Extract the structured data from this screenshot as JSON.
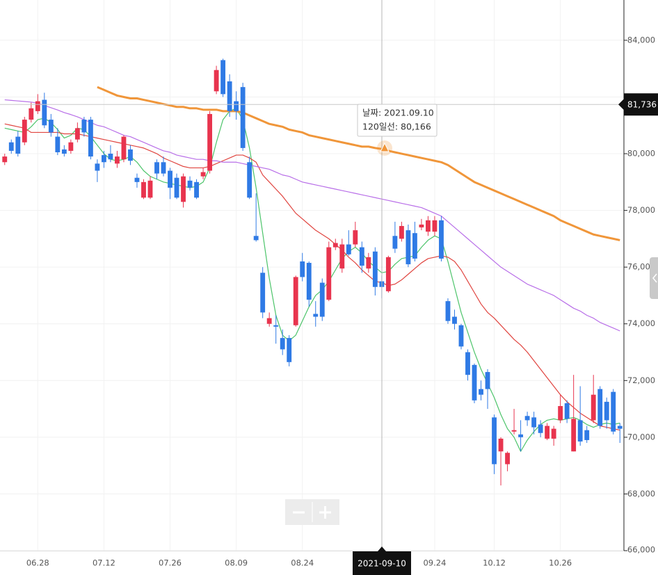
{
  "chart_data": {
    "type": "candlestick",
    "categories": [
      null,
      null,
      null,
      null,
      null,
      "06.28",
      null,
      null,
      null,
      null,
      null,
      null,
      null,
      null,
      null,
      "07.12",
      null,
      null,
      null,
      null,
      null,
      null,
      null,
      null,
      null,
      "07.26",
      null,
      null,
      null,
      null,
      null,
      null,
      null,
      null,
      null,
      "08.09",
      null,
      null,
      null,
      null,
      null,
      null,
      null,
      null,
      null,
      "08.24",
      null,
      null,
      null,
      null,
      null,
      null,
      null,
      null,
      null,
      null,
      null,
      null,
      null,
      null,
      null,
      null,
      null,
      null,
      null,
      "09.24",
      null,
      null,
      null,
      null,
      null,
      null,
      null,
      null,
      "10.12",
      null,
      null,
      null,
      null,
      null,
      null,
      null,
      null,
      null,
      "10.26",
      null,
      null,
      null,
      null,
      null,
      null,
      null,
      null,
      null
    ],
    "open": [
      79700,
      80400,
      80600,
      80400,
      81200,
      81500,
      81900,
      81200,
      80600,
      80150,
      80100,
      80500,
      81200,
      81200,
      79650,
      79950,
      80000,
      79650,
      79800,
      80150,
      79150,
      78450,
      78450,
      79700,
      79700,
      79400,
      79150,
      78300,
      79050,
      79000,
      79200,
      79400,
      82200,
      83300,
      82550,
      81850,
      82350,
      79700,
      77100,
      75800,
      74000,
      73950,
      73500,
      73500,
      73950,
      76200,
      76150,
      74350,
      75450,
      74850,
      76700,
      75950,
      76800,
      76800,
      76700,
      75950,
      76550,
      75500,
      75150,
      77100,
      77000,
      77300,
      77200,
      77400,
      77250,
      77250,
      77650,
      74800,
      74250,
      73950,
      73000,
      72550,
      71700,
      72300,
      70700,
      69500,
      69050,
      70200,
      70100,
      70750,
      70700,
      70450,
      69950,
      69950,
      70600,
      71200,
      69500,
      70600,
      70250,
      70600,
      71700,
      71250,
      71600,
      70400
    ],
    "high": [
      80000,
      80500,
      80800,
      81300,
      81800,
      82100,
      82150,
      81400,
      80900,
      80300,
      80500,
      81100,
      81300,
      81300,
      79800,
      80100,
      80300,
      80100,
      80650,
      80300,
      79300,
      79100,
      79200,
      79800,
      79900,
      79500,
      79300,
      79300,
      79200,
      79100,
      79500,
      81500,
      83100,
      83350,
      82800,
      82200,
      82500,
      79900,
      78600,
      76000,
      74400,
      74300,
      73800,
      73600,
      75700,
      76500,
      76200,
      74800,
      75600,
      76900,
      77000,
      77000,
      77300,
      77600,
      76900,
      76500,
      76700,
      75700,
      76400,
      77600,
      77600,
      77500,
      77600,
      77700,
      77800,
      77800,
      77800,
      74900,
      74500,
      74000,
      73100,
      72600,
      72000,
      72400,
      70800,
      70000,
      69500,
      71000,
      70600,
      70900,
      70900,
      70600,
      70500,
      70400,
      71500,
      71300,
      72200,
      71800,
      70400,
      72200,
      71800,
      71400,
      71700,
      70500
    ],
    "low": [
      79600,
      80000,
      79900,
      80300,
      81100,
      81400,
      80900,
      80600,
      79950,
      79900,
      80000,
      80400,
      80600,
      79800,
      79000,
      79500,
      79700,
      79500,
      79700,
      79600,
      78800,
      78400,
      78400,
      79100,
      79200,
      78400,
      78400,
      78100,
      78700,
      78400,
      79100,
      79300,
      82100,
      82000,
      81300,
      81200,
      80100,
      78400,
      76900,
      74200,
      73900,
      73300,
      72900,
      72500,
      73900,
      75500,
      74600,
      73900,
      74100,
      74800,
      76600,
      75800,
      76400,
      76700,
      75800,
      75800,
      75000,
      74900,
      75100,
      76500,
      76900,
      76000,
      76200,
      77300,
      77100,
      77100,
      76200,
      74000,
      73800,
      73100,
      72000,
      71200,
      71300,
      71000,
      68700,
      68300,
      68800,
      70100,
      69500,
      70400,
      70100,
      70000,
      69900,
      69700,
      70500,
      70500,
      69500,
      69700,
      69800,
      70500,
      70300,
      70300,
      70100,
      69800
    ],
    "close": [
      79900,
      80100,
      80000,
      81200,
      81600,
      81850,
      81000,
      80750,
      80050,
      80000,
      80400,
      80900,
      80750,
      79900,
      79400,
      79700,
      79800,
      79900,
      80600,
      79750,
      79000,
      79000,
      79050,
      79300,
      79300,
      78800,
      78450,
      79200,
      78800,
      78450,
      79350,
      81400,
      82950,
      82100,
      81500,
      81500,
      80200,
      78450,
      76950,
      74400,
      74200,
      73900,
      73100,
      72650,
      75650,
      75650,
      74850,
      74250,
      74250,
      76700,
      76850,
      76800,
      76450,
      77300,
      76050,
      76350,
      75300,
      75300,
      76350,
      76650,
      77450,
      76100,
      76300,
      77500,
      77650,
      77650,
      76300,
      74100,
      74000,
      73200,
      72200,
      71300,
      71500,
      71700,
      69050,
      69950,
      69450,
      70250,
      70000,
      70600,
      70350,
      70150,
      70400,
      70300,
      71100,
      70650,
      70650,
      69850,
      69900,
      71500,
      70400,
      70600,
      70200,
      70300
    ],
    "up_color": "#e8344e",
    "down_color": "#2f7ae5",
    "series": [
      {
        "color": "#4cc46a",
        "width": 1.2,
        "values": [
          80900,
          80850,
          80800,
          80750,
          80950,
          81200,
          81250,
          81100,
          80850,
          80550,
          80650,
          80900,
          80850,
          80600,
          80300,
          80000,
          79800,
          79750,
          79800,
          79900,
          79700,
          79400,
          79200,
          79100,
          79000,
          78950,
          78900,
          78850,
          78800,
          78850,
          79000,
          79500,
          80400,
          81200,
          81500,
          81600,
          81200,
          80200,
          78800,
          77200,
          75600,
          74300,
          73600,
          73400,
          73600,
          74100,
          74600,
          75000,
          75200,
          75500,
          75900,
          76300,
          76550,
          76700,
          76500,
          76200,
          76000,
          75800,
          75850,
          76100,
          76300,
          76350,
          76400,
          76700,
          76950,
          77100,
          77000,
          76200,
          75300,
          74400,
          73700,
          73000,
          72400,
          71900,
          71400,
          70800,
          70300,
          70000,
          69500,
          69900,
          70200,
          70450,
          70600,
          70650,
          70600,
          70650,
          70700,
          70600,
          70450,
          70350,
          70450,
          70500,
          70450,
          70500
        ]
      },
      {
        "color": "#e0443f",
        "width": 1.2,
        "values": [
          81050,
          81000,
          80950,
          80900,
          80750,
          80750,
          80750,
          80750,
          80750,
          80700,
          80700,
          80700,
          80650,
          80600,
          80550,
          80500,
          80450,
          80400,
          80350,
          80300,
          80250,
          80200,
          80100,
          80000,
          79850,
          79750,
          79650,
          79550,
          79500,
          79500,
          79500,
          79550,
          79650,
          79750,
          79850,
          79950,
          79950,
          79850,
          79700,
          79250,
          79000,
          78750,
          78500,
          78200,
          77900,
          77700,
          77500,
          77300,
          77150,
          77000,
          76800,
          76600,
          76350,
          76150,
          75900,
          75700,
          75500,
          75450,
          75350,
          75400,
          75550,
          75750,
          75950,
          76150,
          76300,
          76350,
          76400,
          76350,
          76200,
          75900,
          75500,
          75100,
          74700,
          74400,
          74200,
          73950,
          73700,
          73450,
          73250,
          73000,
          72700,
          72400,
          72100,
          71800,
          71500,
          71250,
          71050,
          70850,
          70700,
          70550,
          70400,
          70350,
          70300,
          70250
        ]
      },
      {
        "color": "#b86ee8",
        "width": 1.2,
        "values": [
          81900,
          81880,
          81860,
          81840,
          81820,
          81780,
          81700,
          81620,
          81540,
          81450,
          81380,
          81300,
          81200,
          81100,
          81000,
          80950,
          80850,
          80750,
          80650,
          80600,
          80500,
          80400,
          80300,
          80200,
          80100,
          80050,
          79950,
          79900,
          79850,
          79800,
          79800,
          79750,
          79750,
          79700,
          79700,
          79700,
          79650,
          79600,
          79550,
          79500,
          79450,
          79350,
          79250,
          79200,
          79100,
          79000,
          78950,
          78900,
          78850,
          78800,
          78750,
          78700,
          78650,
          78600,
          78550,
          78500,
          78450,
          78400,
          78350,
          78300,
          78250,
          78200,
          78150,
          78100,
          78000,
          77900,
          77800,
          77600,
          77400,
          77200,
          77000,
          76800,
          76600,
          76400,
          76200,
          76000,
          75850,
          75700,
          75550,
          75400,
          75300,
          75200,
          75100,
          75000,
          74850,
          74700,
          74550,
          74450,
          74300,
          74200,
          74050,
          73950,
          73850,
          73750
        ]
      },
      {
        "color": "#f0963a",
        "width": 3,
        "values": [
          null,
          null,
          null,
          null,
          null,
          null,
          null,
          null,
          null,
          null,
          null,
          null,
          null,
          null,
          82350,
          82250,
          82150,
          82050,
          82000,
          81950,
          81950,
          81900,
          81850,
          81800,
          81750,
          81700,
          81650,
          81650,
          81600,
          81600,
          81550,
          81550,
          81550,
          81500,
          81500,
          81500,
          81450,
          81350,
          81250,
          81150,
          81050,
          81000,
          80950,
          80850,
          80800,
          80750,
          80650,
          80600,
          80550,
          80500,
          80450,
          80400,
          80350,
          80300,
          80250,
          80250,
          80200,
          80166,
          80100,
          80050,
          80000,
          79950,
          79900,
          79850,
          79800,
          79750,
          79700,
          79600,
          79450,
          79300,
          79150,
          79000,
          78900,
          78800,
          78700,
          78600,
          78500,
          78400,
          78300,
          78200,
          78100,
          78000,
          77900,
          77800,
          77650,
          77550,
          77450,
          77350,
          77250,
          77150,
          77100,
          77050,
          77000,
          76950
        ]
      }
    ],
    "ylim": [
      66000,
      85420
    ],
    "yticks": [
      {
        "value": 66000,
        "label": "66,000"
      },
      {
        "value": 68000,
        "label": "68,000"
      },
      {
        "value": 70000,
        "label": "70,000"
      },
      {
        "value": 72000,
        "label": "72,000"
      },
      {
        "value": 74000,
        "label": "74,000"
      },
      {
        "value": 76000,
        "label": "76,000"
      },
      {
        "value": 78000,
        "label": "78,000"
      },
      {
        "value": 80000,
        "label": "80,000"
      },
      {
        "value": 82000,
        "label": "82,000"
      },
      {
        "value": 84000,
        "label": "84,000"
      }
    ],
    "grid": true,
    "crosshair": {
      "x": "2021-09-10",
      "y": {
        "value": 81736,
        "label": "81,736"
      }
    },
    "tooltip": {
      "date": "날짜: 2021.09.10",
      "ma120": "120일선: 80,166"
    }
  }
}
